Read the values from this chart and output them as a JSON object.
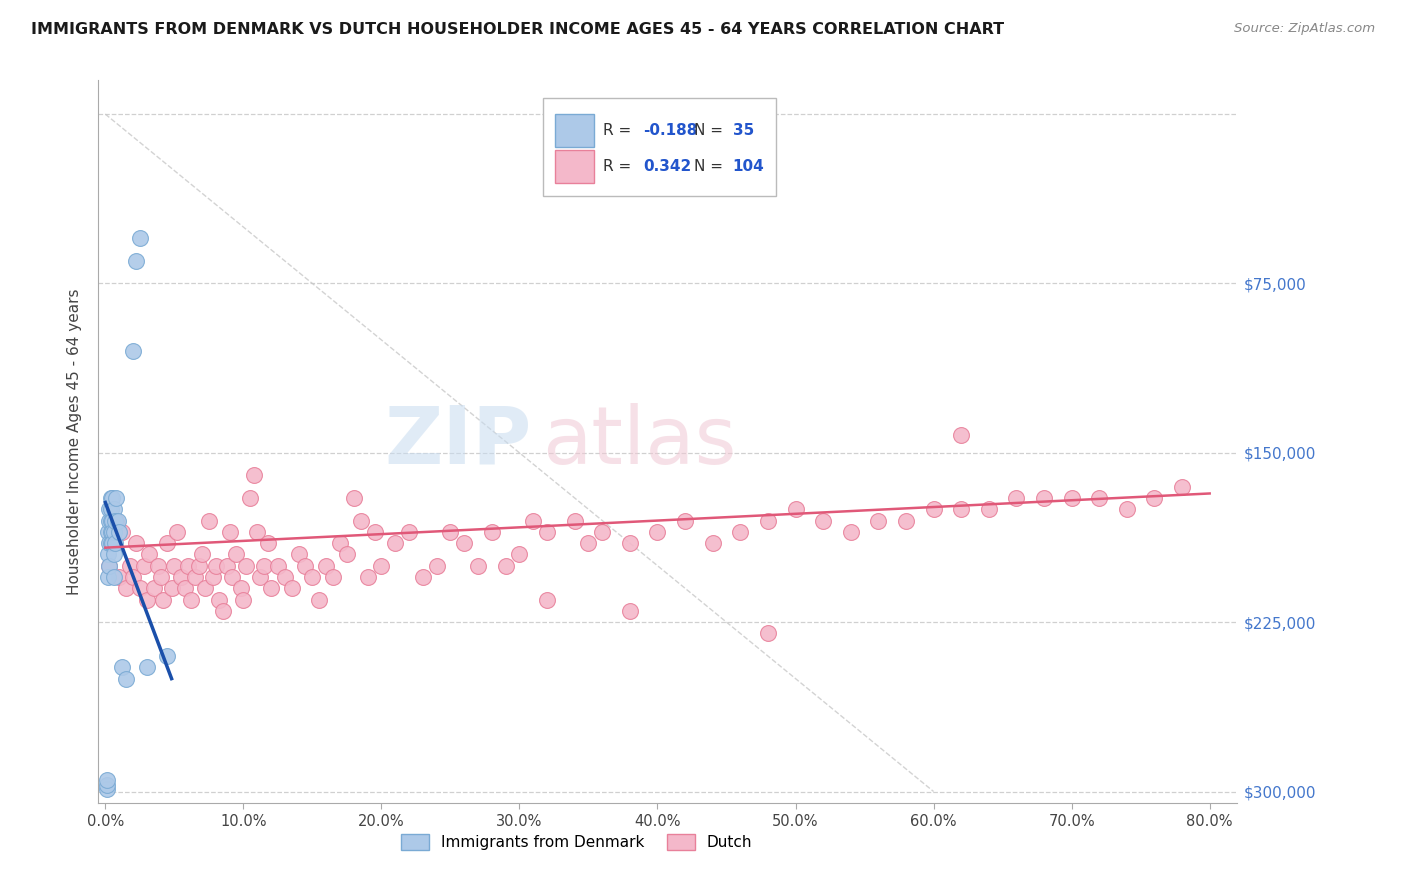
{
  "title": "IMMIGRANTS FROM DENMARK VS DUTCH HOUSEHOLDER INCOME AGES 45 - 64 YEARS CORRELATION CHART",
  "source": "Source: ZipAtlas.com",
  "ylabel": "Householder Income Ages 45 - 64 years",
  "xlim": [
    -0.005,
    0.82
  ],
  "ylim": [
    -5000,
    315000
  ],
  "xtick_vals": [
    0.0,
    0.1,
    0.2,
    0.3,
    0.4,
    0.5,
    0.6,
    0.7,
    0.8
  ],
  "ytick_vals": [
    0,
    75000,
    150000,
    225000,
    300000
  ],
  "right_ytick_labels": [
    "$300,000",
    "$225,000",
    "$150,000",
    "$75,000",
    ""
  ],
  "denmark_fill": "#adc9e8",
  "denmark_edge": "#7aaad4",
  "dutch_fill": "#f4b8ca",
  "dutch_edge": "#e8809a",
  "denmark_line_color": "#1a4faa",
  "dutch_line_color": "#e05878",
  "diag_line_color": "#c8c8c8",
  "grid_color": "#d0d0d0",
  "R_denmark": "-0.188",
  "N_denmark": "35",
  "R_dutch": "0.342",
  "N_dutch": "104",
  "legend_label_denmark": "Immigrants from Denmark",
  "legend_label_dutch": "Dutch",
  "denmark_x": [
    0.001,
    0.001,
    0.001,
    0.002,
    0.002,
    0.002,
    0.003,
    0.003,
    0.003,
    0.003,
    0.004,
    0.004,
    0.004,
    0.004,
    0.004,
    0.005,
    0.005,
    0.005,
    0.005,
    0.006,
    0.006,
    0.006,
    0.006,
    0.007,
    0.007,
    0.008,
    0.009,
    0.01,
    0.012,
    0.015,
    0.02,
    0.022,
    0.025,
    0.03,
    0.045
  ],
  "denmark_y": [
    1000,
    3000,
    5000,
    95000,
    115000,
    105000,
    120000,
    125000,
    110000,
    100000,
    125000,
    115000,
    110000,
    130000,
    120000,
    120000,
    115000,
    130000,
    110000,
    125000,
    115000,
    105000,
    95000,
    120000,
    110000,
    130000,
    120000,
    115000,
    55000,
    50000,
    195000,
    235000,
    245000,
    55000,
    60000
  ],
  "dutch_x": [
    0.003,
    0.005,
    0.008,
    0.01,
    0.012,
    0.015,
    0.018,
    0.02,
    0.022,
    0.025,
    0.028,
    0.03,
    0.032,
    0.035,
    0.038,
    0.04,
    0.042,
    0.045,
    0.048,
    0.05,
    0.052,
    0.055,
    0.058,
    0.06,
    0.062,
    0.065,
    0.068,
    0.07,
    0.072,
    0.075,
    0.078,
    0.08,
    0.082,
    0.085,
    0.088,
    0.09,
    0.092,
    0.095,
    0.098,
    0.1,
    0.102,
    0.105,
    0.108,
    0.11,
    0.112,
    0.115,
    0.118,
    0.12,
    0.125,
    0.13,
    0.135,
    0.14,
    0.145,
    0.15,
    0.155,
    0.16,
    0.165,
    0.17,
    0.175,
    0.18,
    0.185,
    0.19,
    0.195,
    0.2,
    0.21,
    0.22,
    0.23,
    0.24,
    0.25,
    0.26,
    0.27,
    0.28,
    0.29,
    0.3,
    0.31,
    0.32,
    0.34,
    0.35,
    0.36,
    0.38,
    0.4,
    0.42,
    0.44,
    0.46,
    0.48,
    0.5,
    0.52,
    0.54,
    0.56,
    0.58,
    0.6,
    0.62,
    0.64,
    0.66,
    0.68,
    0.7,
    0.72,
    0.74,
    0.76,
    0.78,
    0.62,
    0.48,
    0.38,
    0.32
  ],
  "dutch_y": [
    100000,
    110000,
    120000,
    95000,
    115000,
    90000,
    100000,
    95000,
    110000,
    90000,
    100000,
    85000,
    105000,
    90000,
    100000,
    95000,
    85000,
    110000,
    90000,
    100000,
    115000,
    95000,
    90000,
    100000,
    85000,
    95000,
    100000,
    105000,
    90000,
    120000,
    95000,
    100000,
    85000,
    80000,
    100000,
    115000,
    95000,
    105000,
    90000,
    85000,
    100000,
    130000,
    140000,
    115000,
    95000,
    100000,
    110000,
    90000,
    100000,
    95000,
    90000,
    105000,
    100000,
    95000,
    85000,
    100000,
    95000,
    110000,
    105000,
    130000,
    120000,
    95000,
    115000,
    100000,
    110000,
    115000,
    95000,
    100000,
    115000,
    110000,
    100000,
    115000,
    100000,
    105000,
    120000,
    115000,
    120000,
    110000,
    115000,
    110000,
    115000,
    120000,
    110000,
    115000,
    120000,
    125000,
    120000,
    115000,
    120000,
    120000,
    125000,
    125000,
    125000,
    130000,
    130000,
    130000,
    130000,
    125000,
    130000,
    135000,
    158000,
    70000,
    80000,
    85000
  ]
}
